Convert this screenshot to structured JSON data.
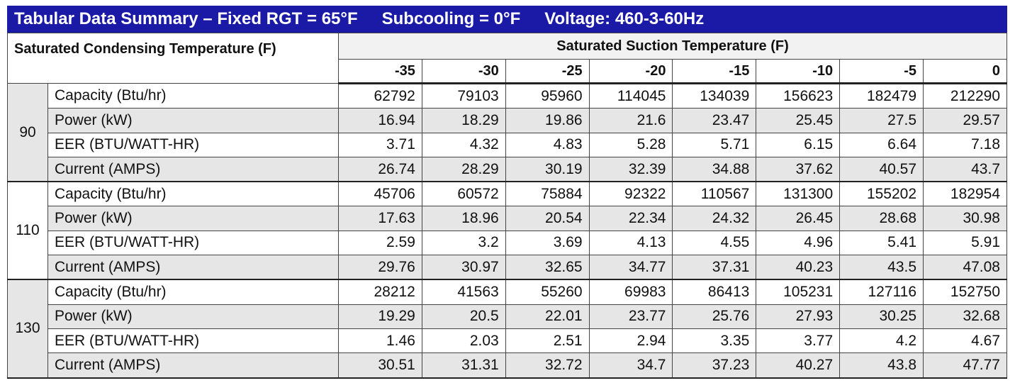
{
  "header": {
    "title": "Tabular Data Summary – Fixed RGT = 65°F",
    "subcooling": "Subcooling = 0°F",
    "voltage": "Voltage: 460-3-60Hz"
  },
  "table": {
    "corner_header": "Saturated Condensing Temperature (F)",
    "column_group_header": "Saturated Suction Temperature (F)",
    "columns": [
      -35,
      -30,
      -25,
      -20,
      -15,
      -10,
      -5,
      0
    ],
    "groups": [
      {
        "label": 90,
        "rows": [
          {
            "label": "Capacity (Btu/hr)",
            "values": [
              62792,
              79103,
              95960,
              114045,
              134039,
              156623,
              182479,
              212290
            ]
          },
          {
            "label": "Power (kW)",
            "values": [
              16.94,
              18.29,
              19.86,
              21.6,
              23.47,
              25.45,
              27.5,
              29.57
            ]
          },
          {
            "label": "EER (BTU/WATT-HR)",
            "values": [
              3.71,
              4.32,
              4.83,
              5.28,
              5.71,
              6.15,
              6.64,
              7.18
            ]
          },
          {
            "label": "Current (AMPS)",
            "values": [
              26.74,
              28.29,
              30.19,
              32.39,
              34.88,
              37.62,
              40.57,
              43.7
            ]
          }
        ]
      },
      {
        "label": 110,
        "rows": [
          {
            "label": "Capacity (Btu/hr)",
            "values": [
              45706,
              60572,
              75884,
              92322,
              110567,
              131300,
              155202,
              182954
            ]
          },
          {
            "label": "Power (kW)",
            "values": [
              17.63,
              18.96,
              20.54,
              22.34,
              24.32,
              26.45,
              28.68,
              30.98
            ]
          },
          {
            "label": "EER (BTU/WATT-HR)",
            "values": [
              2.59,
              3.2,
              3.69,
              4.13,
              4.55,
              4.96,
              5.41,
              5.91
            ]
          },
          {
            "label": "Current (AMPS)",
            "values": [
              29.76,
              30.97,
              32.65,
              34.77,
              37.31,
              40.23,
              43.5,
              47.08
            ]
          }
        ]
      },
      {
        "label": 130,
        "rows": [
          {
            "label": "Capacity (Btu/hr)",
            "values": [
              28212,
              41563,
              55260,
              69983,
              86413,
              105231,
              127116,
              152750
            ]
          },
          {
            "label": "Power (kW)",
            "values": [
              19.29,
              20.5,
              22.01,
              23.77,
              25.76,
              27.93,
              30.25,
              32.68
            ]
          },
          {
            "label": "EER (BTU/WATT-HR)",
            "values": [
              1.46,
              2.03,
              2.51,
              2.94,
              3.35,
              3.77,
              4.2,
              4.67
            ]
          },
          {
            "label": "Current (AMPS)",
            "values": [
              30.51,
              31.31,
              32.72,
              34.7,
              37.23,
              40.27,
              43.8,
              47.77
            ]
          }
        ]
      }
    ]
  }
}
